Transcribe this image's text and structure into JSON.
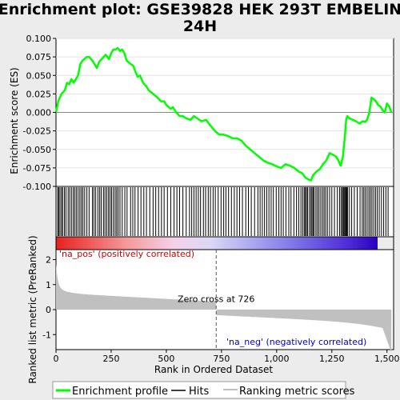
{
  "chart_data": {
    "type": "line",
    "title_line1": "Enrichment plot: GSE39828 HEK 293T EMBELIN",
    "title_line2": "24H",
    "ylabel_top": "Enrichment score (ES)",
    "ylabel_bottom": "Ranked list metric (PreRanked)",
    "xlabel": "Rank in Ordered Dataset",
    "xlim": [
      0,
      1530
    ],
    "x_ticks": [
      "0",
      "250",
      "500",
      "750",
      "1,000",
      "1,250",
      "1,500"
    ],
    "x_tick_values": [
      0,
      250,
      500,
      750,
      1000,
      1250,
      1500
    ],
    "es_ylim": [
      -0.1,
      0.1
    ],
    "es_ticks": [
      "0.100",
      "0.075",
      "0.050",
      "0.025",
      "0.000",
      "-0.025",
      "-0.050",
      "-0.075",
      "-0.100"
    ],
    "es_tick_values": [
      0.1,
      0.075,
      0.05,
      0.025,
      0,
      -0.025,
      -0.05,
      -0.075,
      -0.1
    ],
    "metric_ylim": [
      -1.6,
      2.4
    ],
    "metric_ticks": [
      "2",
      "1",
      "0",
      "-1"
    ],
    "metric_tick_values": [
      2,
      1,
      0,
      -1
    ],
    "zero_cross_rank": 726,
    "zero_cross_label": "Zero cross at 726",
    "pos_label": "'na_pos' (positively correlated)",
    "neg_label": "'na_neg' (negatively correlated)",
    "colors": {
      "es_line": "#00ff00",
      "pos_text": "#cc0000",
      "neg_text": "#0000cc",
      "metric_fill": "#c0c0c0",
      "hit": "#000000"
    },
    "series": [
      {
        "name": "Enrichment profile",
        "x": [
          0,
          10,
          25,
          40,
          50,
          60,
          70,
          80,
          100,
          110,
          120,
          140,
          150,
          165,
          175,
          185,
          195,
          210,
          225,
          240,
          250,
          260,
          270,
          280,
          290,
          300,
          310,
          320,
          340,
          350,
          360,
          370,
          380,
          395,
          410,
          420,
          440,
          460,
          475,
          490,
          500,
          520,
          530,
          545,
          560,
          575,
          590,
          610,
          625,
          640,
          660,
          680,
          700,
          720,
          740,
          760,
          780,
          800,
          820,
          840,
          860,
          880,
          900,
          920,
          940,
          960,
          980,
          1000,
          1020,
          1040,
          1060,
          1080,
          1100,
          1115,
          1130,
          1140,
          1155,
          1165,
          1180,
          1195,
          1210,
          1225,
          1240,
          1260,
          1270,
          1280,
          1290,
          1300,
          1310,
          1315,
          1320,
          1330,
          1345,
          1360,
          1375,
          1390,
          1400,
          1410,
          1420,
          1430,
          1440,
          1450,
          1460,
          1470,
          1480,
          1490,
          1500,
          1510,
          1520
        ],
        "y": [
          0.0,
          0.015,
          0.025,
          0.03,
          0.04,
          0.038,
          0.045,
          0.04,
          0.05,
          0.065,
          0.07,
          0.075,
          0.075,
          0.07,
          0.065,
          0.06,
          0.068,
          0.073,
          0.078,
          0.072,
          0.08,
          0.085,
          0.085,
          0.087,
          0.083,
          0.085,
          0.08,
          0.07,
          0.065,
          0.063,
          0.055,
          0.048,
          0.05,
          0.04,
          0.035,
          0.03,
          0.025,
          0.02,
          0.015,
          0.015,
          0.01,
          0.005,
          0.007,
          0.0,
          -0.005,
          -0.005,
          -0.008,
          -0.01,
          -0.005,
          -0.008,
          -0.012,
          -0.01,
          -0.018,
          -0.025,
          -0.03,
          -0.03,
          -0.032,
          -0.035,
          -0.035,
          -0.038,
          -0.045,
          -0.05,
          -0.055,
          -0.06,
          -0.065,
          -0.068,
          -0.07,
          -0.073,
          -0.075,
          -0.07,
          -0.072,
          -0.075,
          -0.08,
          -0.082,
          -0.088,
          -0.09,
          -0.092,
          -0.085,
          -0.08,
          -0.077,
          -0.07,
          -0.065,
          -0.055,
          -0.058,
          -0.06,
          -0.065,
          -0.072,
          -0.06,
          -0.03,
          -0.01,
          -0.005,
          -0.008,
          -0.01,
          -0.012,
          -0.015,
          -0.012,
          -0.013,
          -0.01,
          0.0,
          0.02,
          0.018,
          0.015,
          0.01,
          0.008,
          0.003,
          0.0,
          0.012,
          0.008,
          0.0
        ]
      }
    ],
    "hits": [
      8,
      12,
      18,
      25,
      30,
      38,
      45,
      55,
      62,
      70,
      78,
      85,
      92,
      100,
      108,
      115,
      122,
      130,
      140,
      150,
      165,
      172,
      180,
      190,
      198,
      205,
      215,
      222,
      230,
      238,
      245,
      252,
      260,
      268,
      275,
      282,
      290,
      300,
      312,
      322,
      338,
      348,
      358,
      372,
      385,
      398,
      410,
      425,
      440,
      452,
      465,
      478,
      490,
      505,
      520,
      535,
      548,
      560,
      575,
      590,
      605,
      615,
      625,
      635,
      645,
      655,
      668,
      678,
      690,
      700,
      712,
      722,
      735,
      748,
      760,
      770,
      782,
      795,
      808,
      820,
      832,
      845,
      860,
      872,
      885,
      900,
      915,
      925,
      935,
      945,
      955,
      965,
      975,
      985,
      998,
      1010,
      1020,
      1030,
      1042,
      1055,
      1065,
      1078,
      1090,
      1100,
      1110,
      1118,
      1125,
      1130,
      1135,
      1140,
      1148,
      1155,
      1160,
      1165,
      1170,
      1178,
      1185,
      1192,
      1200,
      1208,
      1215,
      1222,
      1230,
      1240,
      1250,
      1262,
      1275,
      1285,
      1292,
      1298,
      1302,
      1306,
      1310,
      1314,
      1318,
      1322,
      1330,
      1340,
      1352,
      1365,
      1378,
      1388,
      1395,
      1402,
      1410,
      1418,
      1425,
      1432,
      1440,
      1448,
      1456,
      1465,
      1475,
      1485,
      1495,
      1505
    ]
  },
  "legend": {
    "items": [
      {
        "label": "Enrichment profile"
      },
      {
        "label": "Hits"
      },
      {
        "label": "Ranking metric scores"
      }
    ]
  }
}
